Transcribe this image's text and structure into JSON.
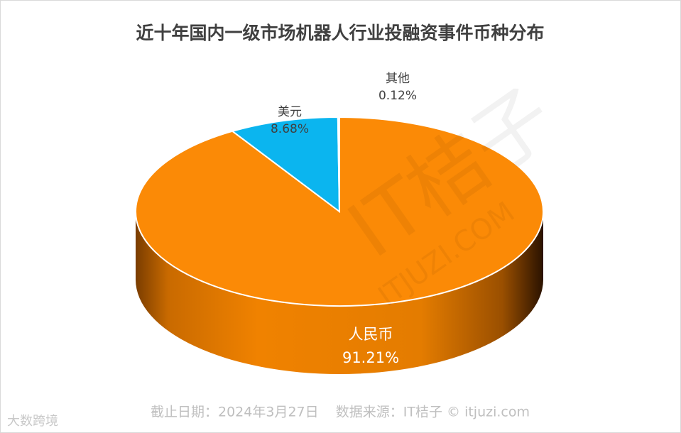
{
  "chart_data": {
    "type": "pie3d",
    "title": "近十年国内一级市场机器人行业投融资事件币种分布",
    "categories": [
      "人民币",
      "美元",
      "其他"
    ],
    "values": [
      91.21,
      8.68,
      0.12
    ],
    "value_labels": [
      "91.21%",
      "8.68%",
      "0.12%"
    ],
    "colors": [
      "#fb8a06",
      "#0bb5ef",
      "#f4f4f4"
    ],
    "note": "截止日期：2024年3月27日    数据来源：IT桔子 © itjuzi.com",
    "watermarks": [
      "IT桔子",
      "ITJUZI.COM",
      "大数跨境"
    ]
  }
}
